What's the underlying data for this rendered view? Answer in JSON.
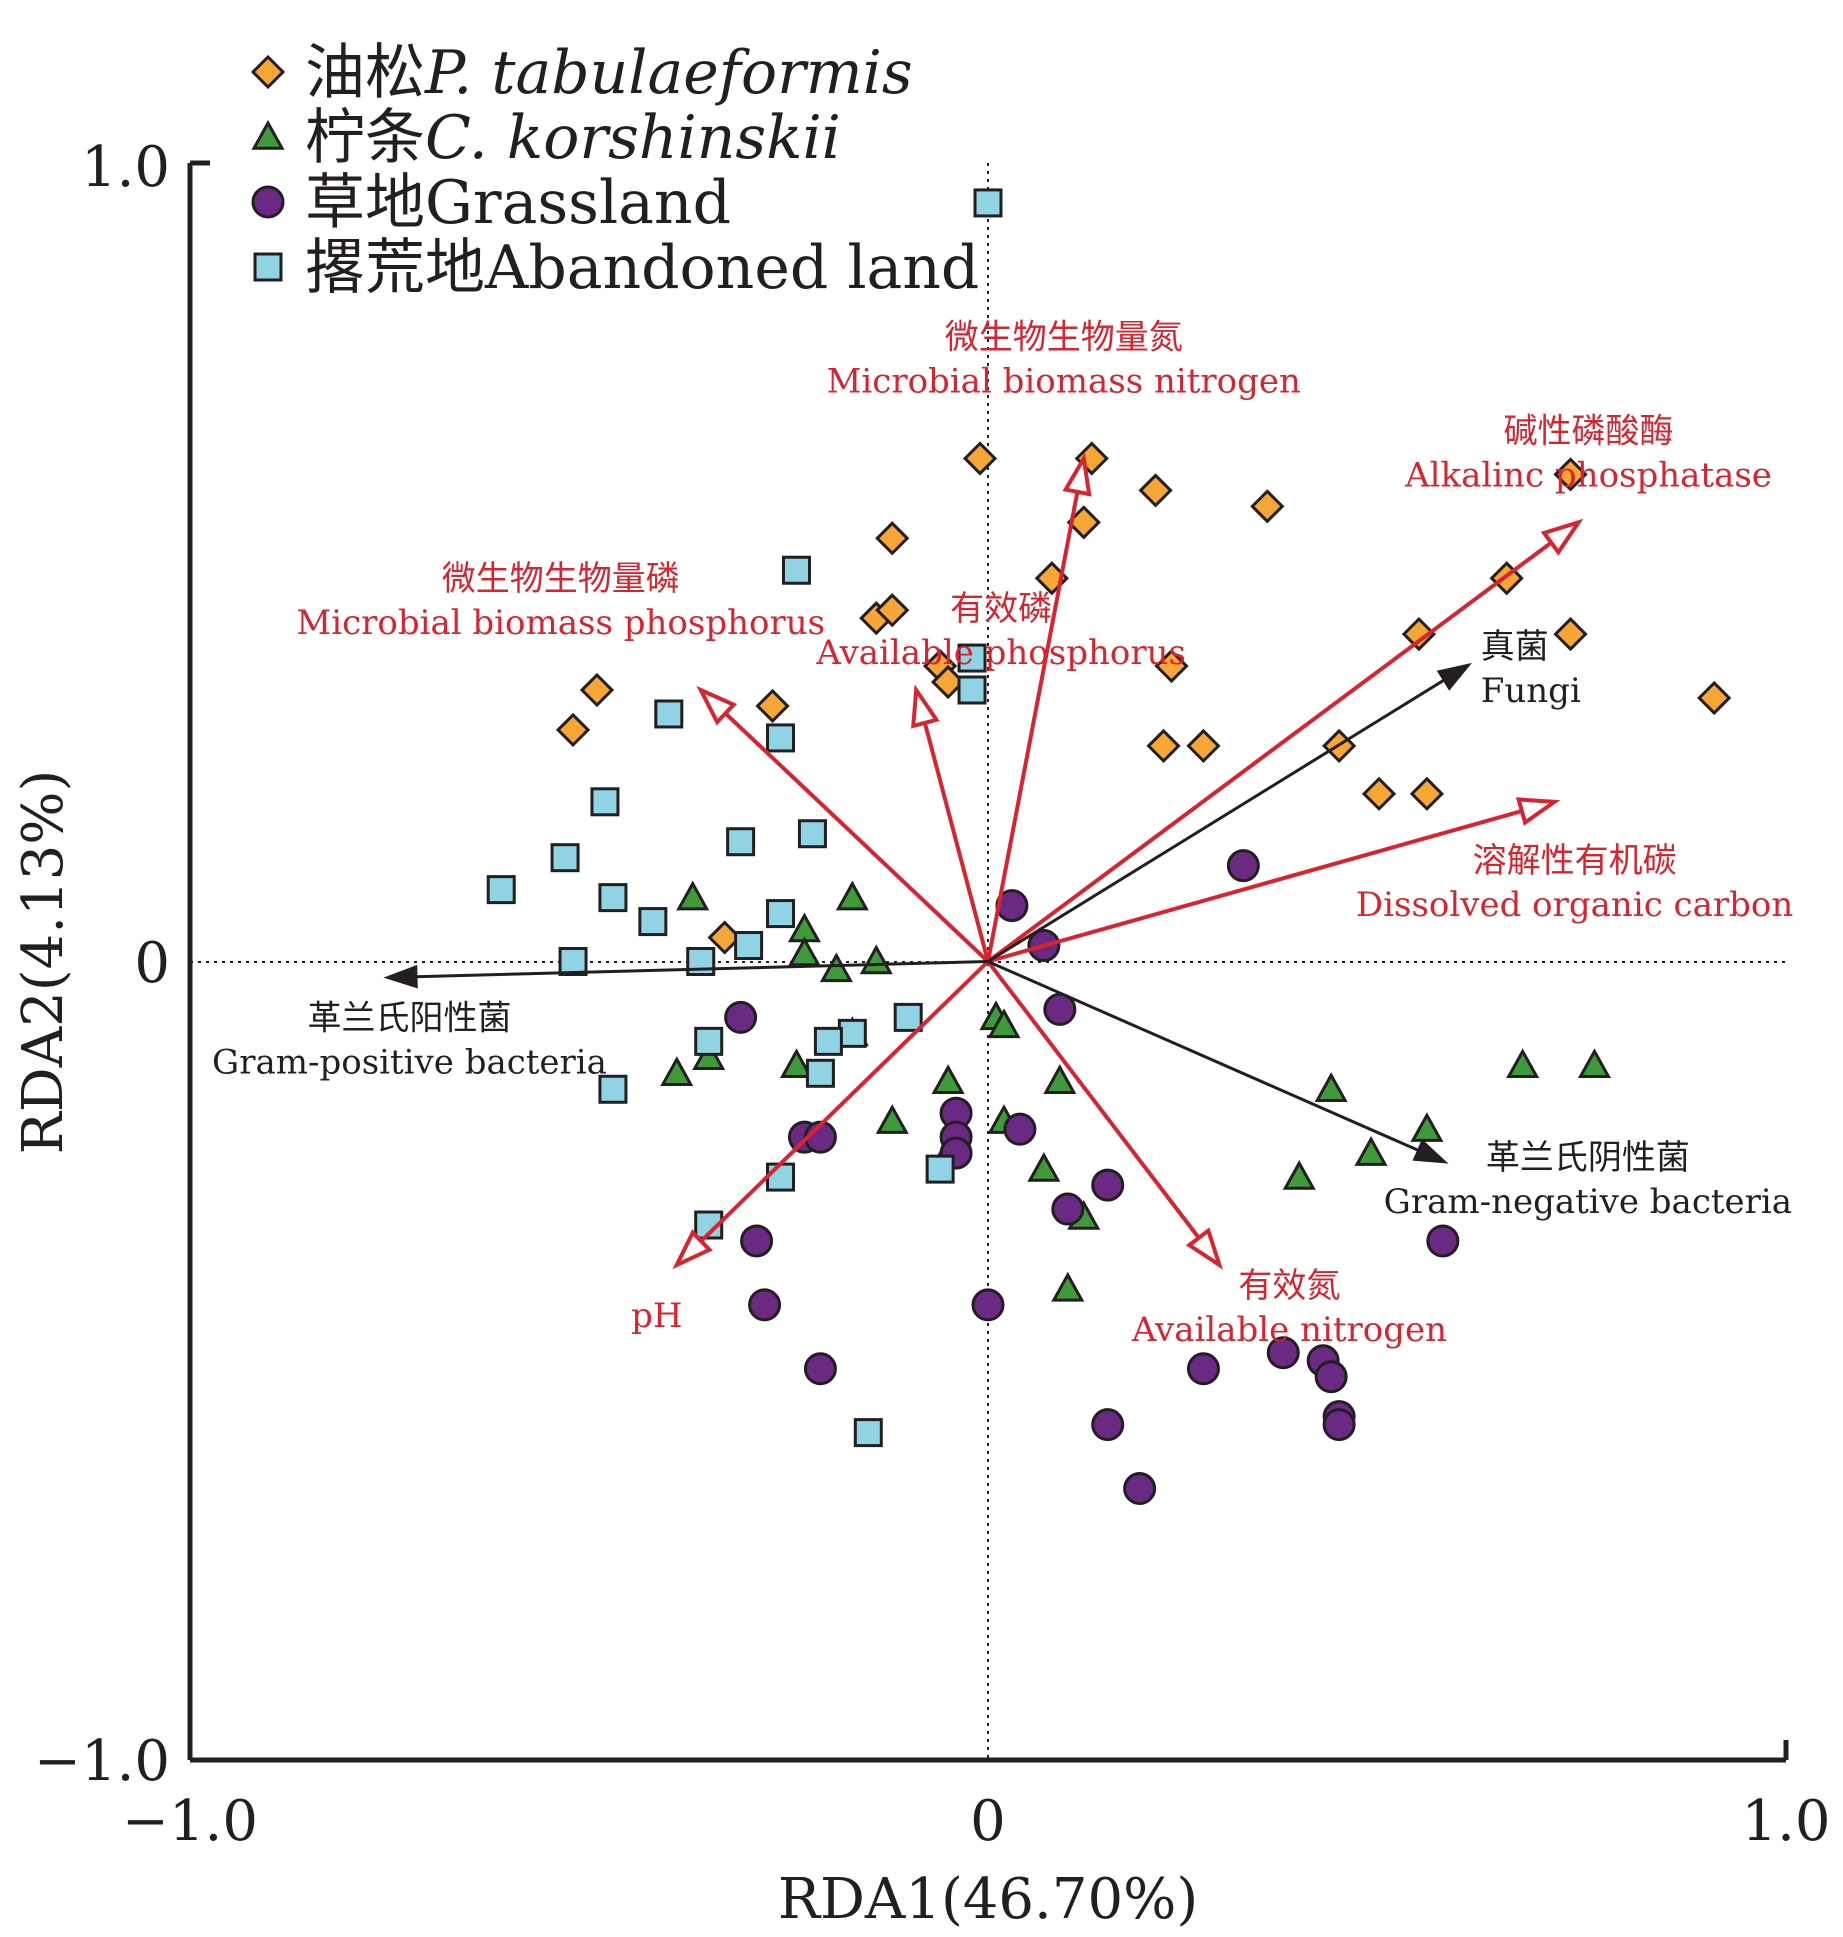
{
  "chart_data": {
    "type": "scatter",
    "subtype": "rda-biplot",
    "xlabel": "RDA1(46.70%)",
    "ylabel": "RDA2(4.13%)",
    "xlim": [
      -1.0,
      1.0
    ],
    "ylim": [
      -1.0,
      1.0
    ],
    "x_ticks": [
      "−1.0",
      "0",
      "1.0"
    ],
    "y_ticks": [
      "1.0",
      "0",
      "−1.0"
    ],
    "grid": false,
    "zero_lines": true,
    "legend_position": "top-left",
    "colors": {
      "p_tabulaeformis": "#f5a634",
      "c_korshinskii": "#3f9a3a",
      "grassland": "#6a2a83",
      "abandoned": "#8fd3e4",
      "env_vector": "#d7242f",
      "species_vector": "#231f20"
    },
    "series": [
      {
        "name": "油松P. tabulaeformis",
        "name_plain": "油松",
        "name_italic": "P. tabulaeformis",
        "marker": "diamond",
        "color": "#f5a634",
        "points": [
          [
            -0.01,
            0.63
          ],
          [
            0.13,
            0.63
          ],
          [
            0.21,
            0.59
          ],
          [
            0.35,
            0.57
          ],
          [
            -0.12,
            0.53
          ],
          [
            0.12,
            0.55
          ],
          [
            0.08,
            0.48
          ],
          [
            -0.14,
            0.43
          ],
          [
            -0.12,
            0.44
          ],
          [
            -0.06,
            0.37
          ],
          [
            -0.05,
            0.35
          ],
          [
            0.23,
            0.37
          ],
          [
            0.54,
            0.41
          ],
          [
            0.65,
            0.48
          ],
          [
            0.73,
            0.61
          ],
          [
            0.73,
            0.41
          ],
          [
            0.91,
            0.33
          ],
          [
            0.44,
            0.27
          ],
          [
            0.22,
            0.27
          ],
          [
            0.27,
            0.27
          ],
          [
            0.49,
            0.21
          ],
          [
            0.55,
            0.21
          ],
          [
            -0.49,
            0.34
          ],
          [
            -0.52,
            0.29
          ],
          [
            -0.27,
            0.32
          ],
          [
            -0.33,
            0.03
          ]
        ]
      },
      {
        "name": "柠条C. korshinskii",
        "name_plain": "柠条",
        "name_italic": "C. korshinskii",
        "marker": "triangle",
        "color": "#3f9a3a",
        "points": [
          [
            -0.37,
            0.08
          ],
          [
            -0.23,
            0.04
          ],
          [
            -0.17,
            0.08
          ],
          [
            -0.23,
            0.01
          ],
          [
            -0.19,
            -0.01
          ],
          [
            -0.14,
            0.0
          ],
          [
            -0.39,
            -0.14
          ],
          [
            -0.35,
            -0.12
          ],
          [
            -0.24,
            -0.13
          ],
          [
            -0.17,
            -0.09
          ],
          [
            -0.12,
            -0.2
          ],
          [
            -0.05,
            -0.15
          ],
          [
            -0.05,
            -0.24
          ],
          [
            0.01,
            -0.07
          ],
          [
            0.02,
            -0.08
          ],
          [
            0.09,
            -0.15
          ],
          [
            0.02,
            -0.2
          ],
          [
            0.07,
            -0.26
          ],
          [
            0.12,
            -0.32
          ],
          [
            0.1,
            -0.41
          ],
          [
            0.43,
            -0.16
          ],
          [
            0.39,
            -0.27
          ],
          [
            0.48,
            -0.24
          ],
          [
            0.55,
            -0.21
          ],
          [
            0.67,
            -0.13
          ],
          [
            0.76,
            -0.13
          ]
        ]
      },
      {
        "name": "草地Grassland",
        "name_plain": "草地",
        "name_italic": "",
        "marker": "circle",
        "color": "#6a2a83",
        "points": [
          [
            0.32,
            0.12
          ],
          [
            0.03,
            0.07
          ],
          [
            0.07,
            0.02
          ],
          [
            0.09,
            -0.06
          ],
          [
            -0.31,
            -0.07
          ],
          [
            -0.23,
            -0.22
          ],
          [
            -0.21,
            -0.22
          ],
          [
            -0.04,
            -0.19
          ],
          [
            -0.04,
            -0.22
          ],
          [
            -0.04,
            -0.24
          ],
          [
            0.04,
            -0.21
          ],
          [
            0.1,
            -0.31
          ],
          [
            0.15,
            -0.28
          ],
          [
            -0.29,
            -0.35
          ],
          [
            -0.28,
            -0.43
          ],
          [
            0.0,
            -0.43
          ],
          [
            -0.21,
            -0.51
          ],
          [
            0.27,
            -0.51
          ],
          [
            0.37,
            -0.49
          ],
          [
            0.42,
            -0.5
          ],
          [
            0.43,
            -0.52
          ],
          [
            0.44,
            -0.57
          ],
          [
            0.44,
            -0.58
          ],
          [
            0.15,
            -0.58
          ],
          [
            0.19,
            -0.66
          ],
          [
            0.57,
            -0.35
          ]
        ]
      },
      {
        "name": "撂荒地Abandoned land",
        "name_plain": "撂荒地",
        "name_italic": "",
        "marker": "square",
        "color": "#8fd3e4",
        "points": [
          [
            0.0,
            0.95
          ],
          [
            -0.24,
            0.49
          ],
          [
            -0.02,
            0.38
          ],
          [
            -0.02,
            0.34
          ],
          [
            -0.4,
            0.31
          ],
          [
            -0.26,
            0.28
          ],
          [
            -0.48,
            0.2
          ],
          [
            -0.53,
            0.13
          ],
          [
            -0.61,
            0.09
          ],
          [
            -0.47,
            0.08
          ],
          [
            -0.42,
            0.05
          ],
          [
            -0.31,
            0.15
          ],
          [
            -0.22,
            0.16
          ],
          [
            -0.26,
            0.06
          ],
          [
            -0.3,
            0.02
          ],
          [
            -0.36,
            0.0
          ],
          [
            -0.52,
            0.0
          ],
          [
            -0.17,
            -0.09
          ],
          [
            -0.2,
            -0.1
          ],
          [
            -0.35,
            -0.1
          ],
          [
            -0.21,
            -0.14
          ],
          [
            -0.47,
            -0.16
          ],
          [
            -0.1,
            -0.07
          ],
          [
            -0.26,
            -0.27
          ],
          [
            -0.35,
            -0.33
          ],
          [
            -0.06,
            -0.26
          ],
          [
            -0.15,
            -0.59
          ]
        ]
      }
    ],
    "vectors": [
      {
        "label_cn": "微生物生物量氮",
        "label_en": "Microbial biomass nitrogen",
        "kind": "environment",
        "end": [
          0.12,
          0.63
        ]
      },
      {
        "label_cn": "碱性磷酸酶",
        "label_en": "Alkalinc phosphatase",
        "kind": "environment",
        "end": [
          0.74,
          0.55
        ]
      },
      {
        "label_cn": "有效磷",
        "label_en": "Available phosphorus",
        "kind": "environment",
        "end": [
          -0.09,
          0.34
        ]
      },
      {
        "label_cn": "微生物生物量磷",
        "label_en": "Microbial biomass phosphorus",
        "kind": "environment",
        "end": [
          -0.36,
          0.34
        ]
      },
      {
        "label_cn": "溶解性有机碳",
        "label_en": "Dissolved organic carbon",
        "kind": "environment",
        "end": [
          0.71,
          0.2
        ]
      },
      {
        "label_cn": "有效氮",
        "label_en": "Available nitrogen",
        "kind": "environment",
        "end": [
          0.29,
          -0.38
        ]
      },
      {
        "label_cn": "",
        "label_en": "pH",
        "kind": "environment",
        "end": [
          -0.39,
          -0.38
        ]
      },
      {
        "label_cn": "真菌",
        "label_en": "Fungi",
        "kind": "species",
        "end": [
          0.6,
          0.37
        ]
      },
      {
        "label_cn": "革兰氏阳性菌",
        "label_en": "Gram-positive bacteria",
        "kind": "species",
        "end": [
          -0.75,
          -0.02
        ]
      },
      {
        "label_cn": "革兰氏阴性菌",
        "label_en": "Gram-negative bacteria",
        "kind": "species",
        "end": [
          0.57,
          -0.25
        ]
      }
    ]
  }
}
